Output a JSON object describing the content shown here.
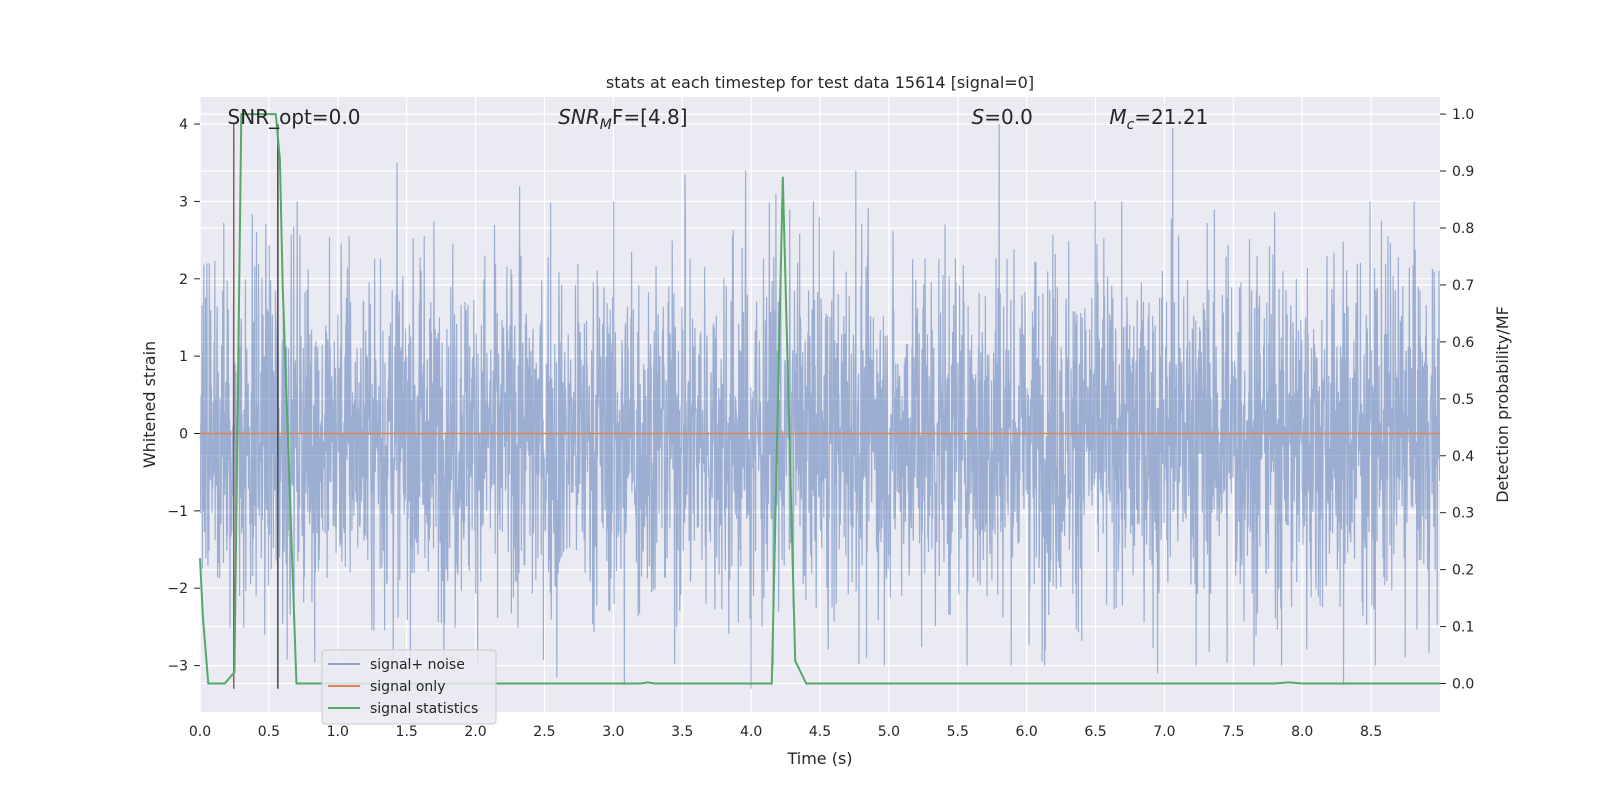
{
  "chart_data": {
    "type": "line",
    "title": "stats at each timestep for test data 15614 [signal=0]",
    "xlabel": "Time (s)",
    "ylabel_left": "Whitened strain",
    "ylabel_right": "Detection probability/MF",
    "xlim": [
      0,
      9
    ],
    "ylim_left": [
      -3.6,
      4.35
    ],
    "ylim_right": [
      -0.05,
      1.03
    ],
    "x_ticks": [
      0.0,
      0.5,
      1.0,
      1.5,
      2.0,
      2.5,
      3.0,
      3.5,
      4.0,
      4.5,
      5.0,
      5.5,
      6.0,
      6.5,
      7.0,
      7.5,
      8.0,
      8.5
    ],
    "x_tick_labels": [
      "0.0",
      "0.5",
      "1.0",
      "1.5",
      "2.0",
      "2.5",
      "3.0",
      "3.5",
      "4.0",
      "4.5",
      "5.0",
      "5.5",
      "6.0",
      "6.5",
      "7.0",
      "7.5",
      "8.0",
      "8.5"
    ],
    "y_left_ticks": [
      4,
      3,
      2,
      1,
      0,
      -1,
      -2,
      -3
    ],
    "y_left_tick_labels": [
      "4",
      "3",
      "2",
      "1",
      "0",
      "−1",
      "−2",
      "−3"
    ],
    "y_right_ticks": [
      1.0,
      0.9,
      0.8,
      0.7,
      0.6,
      0.5,
      0.4,
      0.3,
      0.2,
      0.1,
      0.0
    ],
    "y_right_tick_labels": [
      "1.0",
      "0.9",
      "0.8",
      "0.7",
      "0.6",
      "0.5",
      "0.4",
      "0.3",
      "0.2",
      "0.1",
      "0.0"
    ],
    "grid": true,
    "legend_position": "lower-left",
    "annotations": [
      {
        "x": 0.2,
        "base": "SNR_opt=0.0"
      },
      {
        "x": 2.6,
        "base": "SNR",
        "sub": "M",
        "rest": "F=[4.8]",
        "italic": true
      },
      {
        "x": 5.6,
        "base": "S",
        "rest": "=0.0",
        "italic": true
      },
      {
        "x": 6.6,
        "base": "M",
        "sub": "c",
        "rest": "=21.21",
        "italic": true
      }
    ],
    "series": [
      {
        "name": "signal+ noise",
        "color": "#4c72b0",
        "axis": "left",
        "style": "noise",
        "amplitude": 1.2,
        "peaks": [
          {
            "x": 0.05,
            "y": 2.2
          },
          {
            "x": 1.43,
            "y": 3.5
          },
          {
            "x": 2.32,
            "y": 3.2
          },
          {
            "x": 3.52,
            "y": 3.35
          },
          {
            "x": 3.96,
            "y": 3.4
          },
          {
            "x": 4.18,
            "y": 3.1
          },
          {
            "x": 4.76,
            "y": 3.4
          },
          {
            "x": 5.8,
            "y": 4.0
          },
          {
            "x": 7.06,
            "y": 3.95
          },
          {
            "x": 8.3,
            "y": -3.25
          },
          {
            "x": 6.95,
            "y": -3.1
          },
          {
            "x": 4.0,
            "y": -3.3
          },
          {
            "x": 3.08,
            "y": -3.25
          },
          {
            "x": 2.59,
            "y": -3.15
          }
        ]
      },
      {
        "name": "signal only",
        "color": "#dd8452",
        "axis": "left",
        "x": [
          0,
          9
        ],
        "y": [
          0,
          0
        ]
      },
      {
        "name": "signal statistics",
        "color": "#55a868",
        "axis": "right",
        "x": [
          0.0,
          0.02,
          0.06,
          0.18,
          0.25,
          0.3,
          0.55,
          0.58,
          0.6,
          0.7,
          3.2,
          3.25,
          3.3,
          4.15,
          4.23,
          4.32,
          4.4,
          4.8,
          4.9,
          7.8,
          7.9,
          8.0,
          9.0
        ],
        "y": [
          0.22,
          0.12,
          0.0,
          0.0,
          0.02,
          1.0,
          1.0,
          0.92,
          0.7,
          0.0,
          0.0,
          0.002,
          0.0,
          0.0,
          0.89,
          0.04,
          0.0,
          0.0,
          0.0,
          0.0,
          0.002,
          0.0,
          0.0
        ]
      }
    ],
    "vertical_markers": [
      {
        "x": 0.245,
        "y0": -3.3,
        "y1": 4.0,
        "color": "#8c5c5c"
      },
      {
        "x": 0.565,
        "y0": -3.3,
        "y1": 4.0,
        "color": "#444444"
      }
    ]
  }
}
